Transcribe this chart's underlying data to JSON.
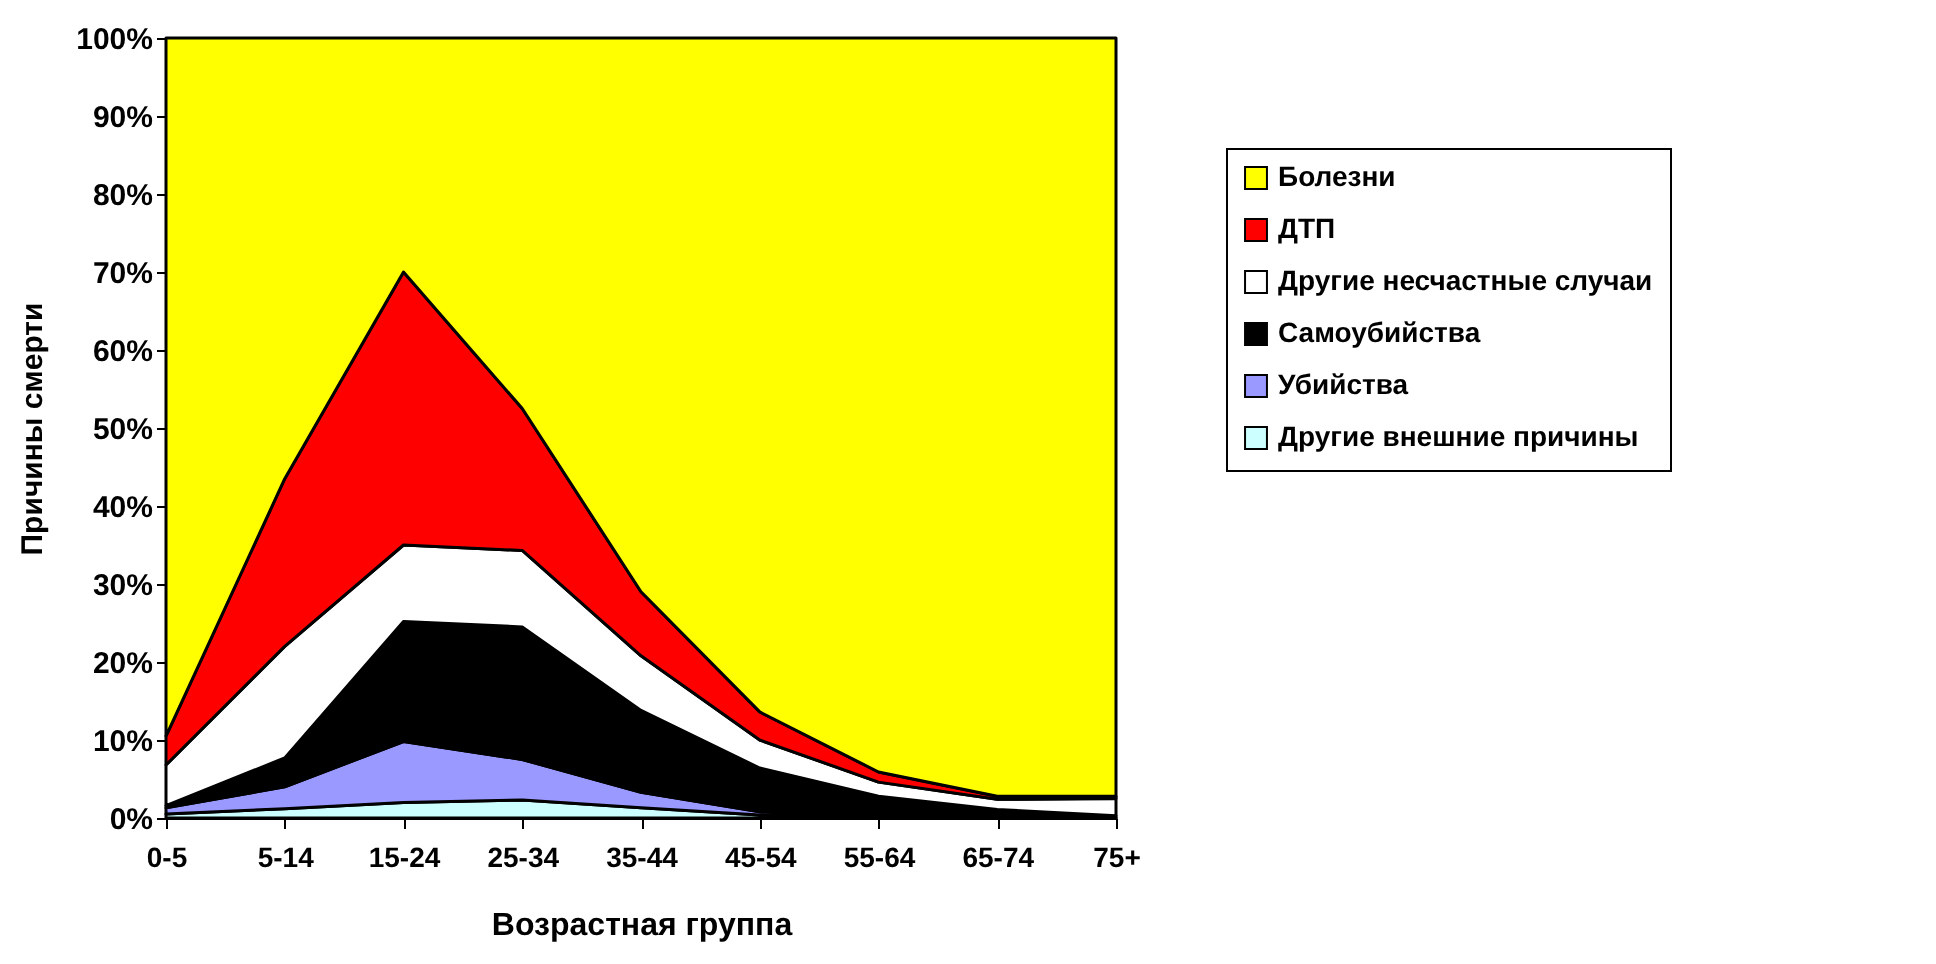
{
  "chart_data": {
    "type": "area",
    "stacked": true,
    "xlabel": "Возрастная группа",
    "ylabel": "Причины смерти",
    "categories": [
      "0-5",
      "5-14",
      "15-24",
      "25-34",
      "35-44",
      "45-54",
      "55-64",
      "65-74",
      "75+"
    ],
    "series": [
      {
        "name": "Другие внешние причины",
        "color": "#ccffff",
        "values": [
          0.5,
          1.2,
          2.0,
          2.3,
          1.3,
          0.4,
          0.1,
          0.1,
          0
        ]
      },
      {
        "name": "Убийства",
        "color": "#9999ff",
        "values": [
          0.8,
          2.8,
          7.8,
          5.2,
          2.0,
          0.4,
          0.1,
          0,
          0
        ]
      },
      {
        "name": "Самоубийства",
        "color": "#000000",
        "values": [
          0.3,
          3.7,
          15.4,
          17.0,
          10.5,
          5.6,
          2.6,
          1.0,
          0.3
        ]
      },
      {
        "name": "Другие несчастные случаи",
        "color": "#ffffff",
        "values": [
          5.2,
          14.3,
          9.8,
          9.8,
          7.0,
          3.6,
          1.8,
          1.3,
          2.2
        ]
      },
      {
        "name": "ДТП",
        "color": "#ff0000",
        "values": [
          3.7,
          21.5,
          35.0,
          18.2,
          8.2,
          3.6,
          1.3,
          0.4,
          0.3
        ]
      },
      {
        "name": "Болезни",
        "color": "#ffff00",
        "values": [
          89.5,
          56.5,
          30.0,
          47.5,
          71.0,
          86.4,
          94.1,
          97.2,
          97.2
        ]
      }
    ],
    "ylim": [
      0,
      100
    ],
    "yticks": [
      {
        "value": 0,
        "label": "0%"
      },
      {
        "value": 10,
        "label": "10%"
      },
      {
        "value": 20,
        "label": "20%"
      },
      {
        "value": 30,
        "label": "30%"
      },
      {
        "value": 40,
        "label": "40%"
      },
      {
        "value": 50,
        "label": "50%"
      },
      {
        "value": 60,
        "label": "60%"
      },
      {
        "value": 70,
        "label": "70%"
      },
      {
        "value": 80,
        "label": "80%"
      },
      {
        "value": 90,
        "label": "90%"
      },
      {
        "value": 100,
        "label": "100%"
      }
    ],
    "grid": false,
    "legend": "right"
  }
}
